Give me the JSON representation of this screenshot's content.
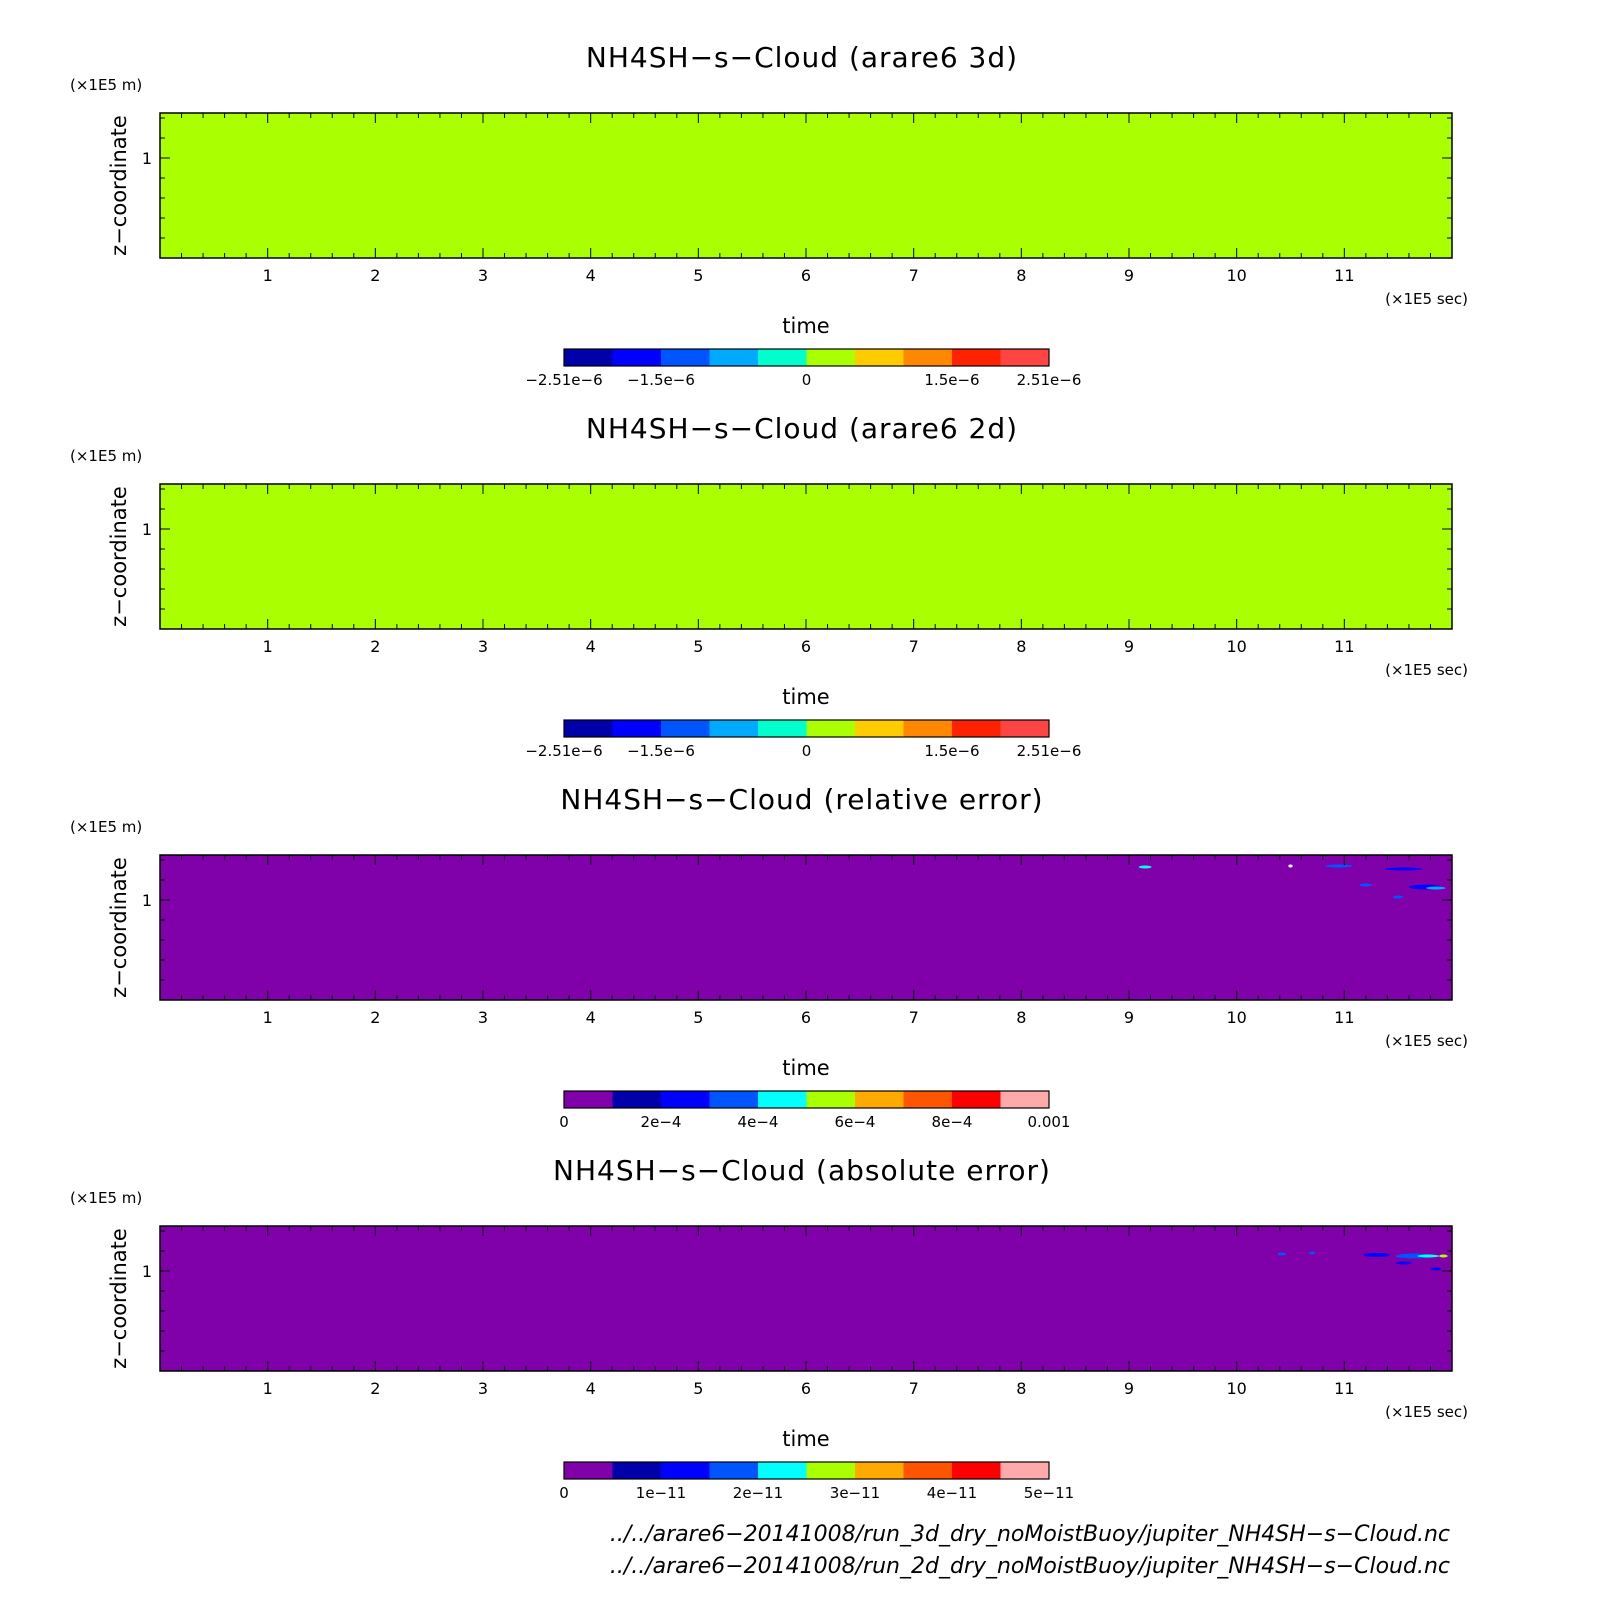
{
  "chart_data": [
    {
      "type": "heatmap",
      "title": "NH4SH−s−Cloud (arare6 3d)",
      "xlabel": "time",
      "x_unit": "(×1E5 sec)",
      "ylabel": "z−coordinate",
      "y_unit": "(×1E5 m)",
      "xlim": [
        0,
        12
      ],
      "x_ticks": [
        "1",
        "2",
        "3",
        "4",
        "5",
        "6",
        "7",
        "8",
        "9",
        "10",
        "11"
      ],
      "y_ticks": [
        "1"
      ],
      "field_value": 0,
      "field_color": "#aaff00",
      "colorbar": {
        "colors": [
          "#0000aa",
          "#0000ff",
          "#0055ff",
          "#00aaff",
          "#00ffcc",
          "#aaff00",
          "#ffcc00",
          "#ff8800",
          "#ff2200",
          "#ff4444"
        ],
        "labels": [
          {
            "text": "−2.51e−6",
            "pos": 0.0
          },
          {
            "text": "−1.5e−6",
            "pos": 0.2
          },
          {
            "text": "0",
            "pos": 0.5
          },
          {
            "text": "1.5e−6",
            "pos": 0.8
          },
          {
            "text": "2.51e−6",
            "pos": 1.0
          }
        ]
      },
      "features": []
    },
    {
      "type": "heatmap",
      "title": "NH4SH−s−Cloud (arare6 2d)",
      "xlabel": "time",
      "x_unit": "(×1E5 sec)",
      "ylabel": "z−coordinate",
      "y_unit": "(×1E5 m)",
      "xlim": [
        0,
        12
      ],
      "x_ticks": [
        "1",
        "2",
        "3",
        "4",
        "5",
        "6",
        "7",
        "8",
        "9",
        "10",
        "11"
      ],
      "y_ticks": [
        "1"
      ],
      "field_value": 0,
      "field_color": "#aaff00",
      "colorbar": {
        "colors": [
          "#0000aa",
          "#0000ff",
          "#0055ff",
          "#00aaff",
          "#00ffcc",
          "#aaff00",
          "#ffcc00",
          "#ff8800",
          "#ff2200",
          "#ff4444"
        ],
        "labels": [
          {
            "text": "−2.51e−6",
            "pos": 0.0
          },
          {
            "text": "−1.5e−6",
            "pos": 0.2
          },
          {
            "text": "0",
            "pos": 0.5
          },
          {
            "text": "1.5e−6",
            "pos": 0.8
          },
          {
            "text": "2.51e−6",
            "pos": 1.0
          }
        ]
      },
      "features": []
    },
    {
      "type": "heatmap",
      "title": "NH4SH−s−Cloud (relative error)",
      "xlabel": "time",
      "x_unit": "(×1E5 sec)",
      "ylabel": "z−coordinate",
      "y_unit": "(×1E5 m)",
      "xlim": [
        0,
        12
      ],
      "x_ticks": [
        "1",
        "2",
        "3",
        "4",
        "5",
        "6",
        "7",
        "8",
        "9",
        "10",
        "11"
      ],
      "y_ticks": [
        "1"
      ],
      "field_value": 0,
      "field_color": "#8000aa",
      "colorbar": {
        "colors": [
          "#8000aa",
          "#0000aa",
          "#0000ff",
          "#0055ff",
          "#00ffff",
          "#aaff00",
          "#ffaa00",
          "#ff5500",
          "#ff0000",
          "#ffaaaa"
        ],
        "labels": [
          {
            "text": "0",
            "pos": 0.0
          },
          {
            "text": "2e−4",
            "pos": 0.2
          },
          {
            "text": "4e−4",
            "pos": 0.4
          },
          {
            "text": "6e−4",
            "pos": 0.6
          },
          {
            "text": "8e−4",
            "pos": 0.8
          },
          {
            "text": "0.001",
            "pos": 1.0
          }
        ]
      },
      "features": [
        {
          "x": 9.15,
          "z": 1.33,
          "w": 0.12,
          "h": 0.02,
          "color": "#00ffff"
        },
        {
          "x": 10.5,
          "z": 1.34,
          "w": 0.04,
          "h": 0.02,
          "color": "#ffffff"
        },
        {
          "x": 10.95,
          "z": 1.34,
          "w": 0.25,
          "h": 0.02,
          "color": "#0055ff"
        },
        {
          "x": 11.55,
          "z": 1.31,
          "w": 0.35,
          "h": 0.015,
          "color": "#0000ff"
        },
        {
          "x": 11.2,
          "z": 1.15,
          "w": 0.12,
          "h": 0.03,
          "color": "#0055ff"
        },
        {
          "x": 11.75,
          "z": 1.13,
          "w": 0.3,
          "h": 0.05,
          "color": "#0000ff"
        },
        {
          "x": 11.85,
          "z": 1.12,
          "w": 0.18,
          "h": 0.03,
          "color": "#00aaff"
        },
        {
          "x": 11.5,
          "z": 1.03,
          "w": 0.1,
          "h": 0.02,
          "color": "#0055ff"
        }
      ]
    },
    {
      "type": "heatmap",
      "title": "NH4SH−s−Cloud (absolute error)",
      "xlabel": "time",
      "x_unit": "(×1E5 sec)",
      "ylabel": "z−coordinate",
      "y_unit": "(×1E5 m)",
      "xlim": [
        0,
        12
      ],
      "x_ticks": [
        "1",
        "2",
        "3",
        "4",
        "5",
        "6",
        "7",
        "8",
        "9",
        "10",
        "11"
      ],
      "y_ticks": [
        "1"
      ],
      "field_value": 0,
      "field_color": "#8000aa",
      "colorbar": {
        "colors": [
          "#8000aa",
          "#0000aa",
          "#0000ff",
          "#0055ff",
          "#00ffff",
          "#aaff00",
          "#ffaa00",
          "#ff5500",
          "#ff0000",
          "#ffaaaa"
        ],
        "labels": [
          {
            "text": "0",
            "pos": 0.0
          },
          {
            "text": "1e−11",
            "pos": 0.2
          },
          {
            "text": "2e−11",
            "pos": 0.4
          },
          {
            "text": "3e−11",
            "pos": 0.6
          },
          {
            "text": "4e−11",
            "pos": 0.8
          },
          {
            "text": "5e−11",
            "pos": 1.0
          }
        ]
      },
      "features": [
        {
          "x": 10.42,
          "z": 1.17,
          "w": 0.08,
          "h": 0.02,
          "color": "#0055ff"
        },
        {
          "x": 10.7,
          "z": 1.18,
          "w": 0.06,
          "h": 0.015,
          "color": "#0055ff"
        },
        {
          "x": 11.3,
          "z": 1.16,
          "w": 0.25,
          "h": 0.04,
          "color": "#0000ff"
        },
        {
          "x": 11.65,
          "z": 1.15,
          "w": 0.35,
          "h": 0.05,
          "color": "#0055ff"
        },
        {
          "x": 11.78,
          "z": 1.15,
          "w": 0.2,
          "h": 0.03,
          "color": "#00ffff"
        },
        {
          "x": 11.92,
          "z": 1.15,
          "w": 0.08,
          "h": 0.03,
          "color": "#aaff00"
        },
        {
          "x": 11.55,
          "z": 1.08,
          "w": 0.15,
          "h": 0.02,
          "color": "#0000ff"
        },
        {
          "x": 11.85,
          "z": 1.02,
          "w": 0.1,
          "h": 0.02,
          "color": "#0000ff"
        }
      ]
    }
  ],
  "footer": {
    "line1": "../../arare6−20141008/run_3d_dry_noMoistBuoy/jupiter_NH4SH−s−Cloud.nc",
    "line2": "../../arare6−20141008/run_2d_dry_noMoistBuoy/jupiter_NH4SH−s−Cloud.nc"
  }
}
